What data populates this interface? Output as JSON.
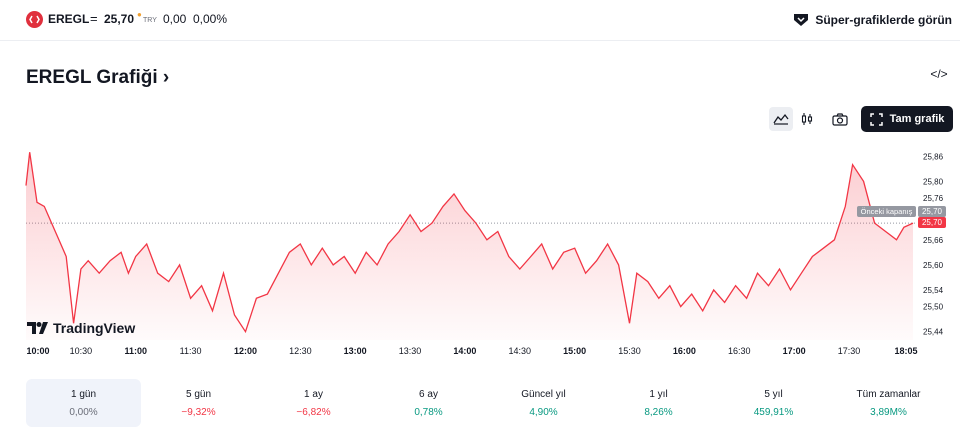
{
  "topbar": {
    "symbol": "EREGL",
    "separator": "=",
    "price": "25,70",
    "currency": "TRY",
    "change": "0,00",
    "change_percent": "0,00%",
    "super_charts_label": "Süper-grafiklerde görün"
  },
  "page_title": "EREGL Grafiği",
  "title_chevron": "›",
  "embed_code_label": "</>",
  "toolbar": {
    "fullscreen_label": "Tam grafik",
    "active_chart_style": "area"
  },
  "brand": {
    "logo_text": "TradingView"
  },
  "colors": {
    "line": "#f23645",
    "fill_top": "rgba(242,54,69,0.25)",
    "fill_bottom": "rgba(242,54,69,0.02)",
    "dark_button": "#131722",
    "positive": "#089981",
    "negative": "#f23645"
  },
  "chart_data": {
    "type": "area",
    "title": "",
    "xlabel": "",
    "ylabel": "",
    "x_ticks": [
      "10:00",
      "10:30",
      "11:00",
      "11:30",
      "12:00",
      "12:30",
      "13:00",
      "13:30",
      "14:00",
      "14:30",
      "15:00",
      "15:30",
      "16:00",
      "16:30",
      "17:00",
      "17:30",
      "18:05"
    ],
    "x_major_ticks": [
      "10:00",
      "11:00",
      "12:00",
      "13:00",
      "14:00",
      "15:00",
      "16:00",
      "17:00",
      "18:05"
    ],
    "y_ticks": [
      "25,86",
      "25,80",
      "25,76",
      "25,70",
      "25,66",
      "25,60",
      "25,54",
      "25,50",
      "25,44"
    ],
    "y_tick_values": [
      25.86,
      25.8,
      25.76,
      25.7,
      25.66,
      25.6,
      25.54,
      25.5,
      25.44
    ],
    "ylim": [
      25.42,
      25.88
    ],
    "previous_close": 25.7,
    "previous_close_label": "Önceki kapanış",
    "previous_close_tag": "25,70",
    "last_price_tag": "25,70",
    "series": [
      {
        "name": "EREGL",
        "points": [
          [
            "10:00",
            25.79
          ],
          [
            "10:02",
            25.87
          ],
          [
            "10:06",
            25.75
          ],
          [
            "10:10",
            25.74
          ],
          [
            "10:14",
            25.7
          ],
          [
            "10:18",
            25.66
          ],
          [
            "10:22",
            25.62
          ],
          [
            "10:26",
            25.46
          ],
          [
            "10:30",
            25.59
          ],
          [
            "10:34",
            25.61
          ],
          [
            "10:40",
            25.58
          ],
          [
            "10:46",
            25.61
          ],
          [
            "10:52",
            25.63
          ],
          [
            "10:56",
            25.58
          ],
          [
            "11:00",
            25.62
          ],
          [
            "11:06",
            25.65
          ],
          [
            "11:12",
            25.58
          ],
          [
            "11:18",
            25.56
          ],
          [
            "11:24",
            25.6
          ],
          [
            "11:30",
            25.52
          ],
          [
            "11:36",
            25.55
          ],
          [
            "11:42",
            25.49
          ],
          [
            "11:48",
            25.58
          ],
          [
            "11:54",
            25.48
          ],
          [
            "12:00",
            25.44
          ],
          [
            "12:06",
            25.52
          ],
          [
            "12:12",
            25.53
          ],
          [
            "12:18",
            25.58
          ],
          [
            "12:24",
            25.63
          ],
          [
            "12:30",
            25.65
          ],
          [
            "12:36",
            25.6
          ],
          [
            "12:42",
            25.64
          ],
          [
            "12:48",
            25.6
          ],
          [
            "12:54",
            25.62
          ],
          [
            "13:00",
            25.58
          ],
          [
            "13:06",
            25.63
          ],
          [
            "13:12",
            25.6
          ],
          [
            "13:18",
            25.65
          ],
          [
            "13:24",
            25.68
          ],
          [
            "13:30",
            25.72
          ],
          [
            "13:36",
            25.68
          ],
          [
            "13:42",
            25.7
          ],
          [
            "13:48",
            25.74
          ],
          [
            "13:54",
            25.77
          ],
          [
            "14:00",
            25.73
          ],
          [
            "14:06",
            25.7
          ],
          [
            "14:12",
            25.66
          ],
          [
            "14:18",
            25.68
          ],
          [
            "14:24",
            25.62
          ],
          [
            "14:30",
            25.59
          ],
          [
            "14:36",
            25.62
          ],
          [
            "14:42",
            25.65
          ],
          [
            "14:48",
            25.59
          ],
          [
            "14:54",
            25.63
          ],
          [
            "15:00",
            25.64
          ],
          [
            "15:06",
            25.58
          ],
          [
            "15:12",
            25.61
          ],
          [
            "15:18",
            25.65
          ],
          [
            "15:24",
            25.6
          ],
          [
            "15:30",
            25.46
          ],
          [
            "15:34",
            25.58
          ],
          [
            "15:40",
            25.56
          ],
          [
            "15:46",
            25.52
          ],
          [
            "15:52",
            25.55
          ],
          [
            "15:58",
            25.5
          ],
          [
            "16:04",
            25.53
          ],
          [
            "16:10",
            25.49
          ],
          [
            "16:16",
            25.54
          ],
          [
            "16:22",
            25.51
          ],
          [
            "16:28",
            25.55
          ],
          [
            "16:34",
            25.52
          ],
          [
            "16:40",
            25.58
          ],
          [
            "16:46",
            25.55
          ],
          [
            "16:52",
            25.59
          ],
          [
            "16:58",
            25.54
          ],
          [
            "17:04",
            25.58
          ],
          [
            "17:10",
            25.62
          ],
          [
            "17:16",
            25.64
          ],
          [
            "17:22",
            25.66
          ],
          [
            "17:28",
            25.74
          ],
          [
            "17:32",
            25.84
          ],
          [
            "17:38",
            25.8
          ],
          [
            "17:44",
            25.7
          ],
          [
            "17:50",
            25.68
          ],
          [
            "17:56",
            25.66
          ],
          [
            "18:00",
            25.69
          ],
          [
            "18:05",
            25.7
          ]
        ]
      }
    ]
  },
  "ranges": [
    {
      "label": "1 gün",
      "value": "0,00%",
      "tone": "gray",
      "active": true
    },
    {
      "label": "5 gün",
      "value": "−9,32%",
      "tone": "red",
      "active": false
    },
    {
      "label": "1 ay",
      "value": "−6,82%",
      "tone": "red",
      "active": false
    },
    {
      "label": "6 ay",
      "value": "0,78%",
      "tone": "green",
      "active": false
    },
    {
      "label": "Güncel yıl",
      "value": "4,90%",
      "tone": "green",
      "active": false
    },
    {
      "label": "1 yıl",
      "value": "8,26%",
      "tone": "green",
      "active": false
    },
    {
      "label": "5 yıl",
      "value": "459,91%",
      "tone": "green",
      "active": false
    },
    {
      "label": "Tüm zamanlar",
      "value": "3,89M%",
      "tone": "green",
      "active": false
    }
  ]
}
